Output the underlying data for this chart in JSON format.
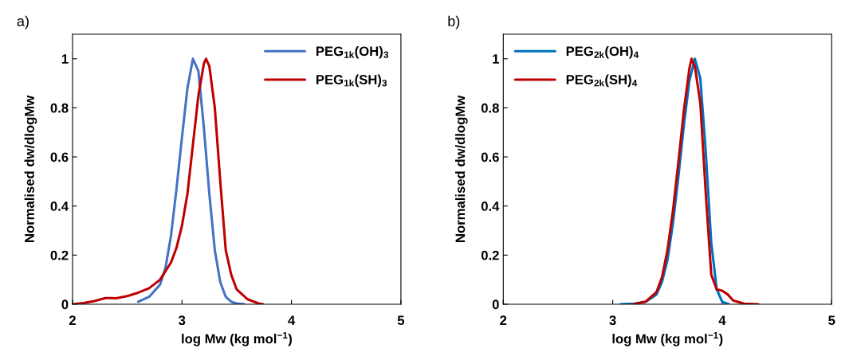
{
  "chart_data": [
    {
      "type": "line",
      "annotations": [
        "a)"
      ],
      "xlabel": "log Mw (kg mol$^{−1}$)",
      "ylabel": "Normalised dw/dlogMw",
      "xlim": [
        2,
        5
      ],
      "xticks": [
        2,
        3,
        4,
        5
      ],
      "ylim": [
        0,
        1.1
      ],
      "yticks": [
        0,
        0.2,
        0.4,
        0.6,
        0.8,
        1
      ],
      "legend": "top right",
      "grid": false,
      "series": [
        {
          "name": "PEG$_{1k}$(OH)$_{3}$",
          "color": "#4472c4",
          "x": [
            2.6,
            2.7,
            2.8,
            2.85,
            2.9,
            2.95,
            3.0,
            3.05,
            3.1,
            3.15,
            3.2,
            3.25,
            3.3,
            3.35,
            3.4,
            3.45,
            3.5,
            3.57
          ],
          "values": [
            0.01,
            0.03,
            0.08,
            0.15,
            0.28,
            0.47,
            0.68,
            0.88,
            1.0,
            0.95,
            0.72,
            0.45,
            0.22,
            0.09,
            0.03,
            0.01,
            0.003,
            0
          ]
        },
        {
          "name": "PEG$_{1k}$(SH)$_{3}$",
          "color": "#c00000",
          "x": [
            2.0,
            2.1,
            2.2,
            2.3,
            2.35,
            2.4,
            2.5,
            2.6,
            2.7,
            2.8,
            2.9,
            2.95,
            3.0,
            3.05,
            3.1,
            3.15,
            3.2,
            3.22,
            3.25,
            3.3,
            3.35,
            3.4,
            3.45,
            3.5,
            3.6,
            3.7,
            3.74
          ],
          "values": [
            0,
            0.005,
            0.013,
            0.025,
            0.025,
            0.024,
            0.033,
            0.047,
            0.065,
            0.1,
            0.17,
            0.23,
            0.32,
            0.45,
            0.65,
            0.85,
            0.98,
            1.0,
            0.97,
            0.8,
            0.5,
            0.22,
            0.12,
            0.06,
            0.02,
            0.003,
            0
          ]
        }
      ]
    },
    {
      "type": "line",
      "annotations": [
        "b)"
      ],
      "xlabel": "log Mw (kg mol$^{−1}$)",
      "ylabel": "Normalised dw/dlogMw",
      "xlim": [
        2,
        5
      ],
      "xticks": [
        2,
        3,
        4,
        5
      ],
      "ylim": [
        0,
        1.1
      ],
      "yticks": [
        0,
        0.2,
        0.4,
        0.6,
        0.8,
        1
      ],
      "legend": "top left",
      "grid": false,
      "series": [
        {
          "name": "PEG$_{2k}$(OH)$_{4}$",
          "color": "#0070c0",
          "x": [
            3.07,
            3.2,
            3.3,
            3.4,
            3.45,
            3.5,
            3.55,
            3.6,
            3.65,
            3.7,
            3.75,
            3.8,
            3.85,
            3.9,
            3.95,
            4.0,
            4.06
          ],
          "values": [
            0,
            0.002,
            0.01,
            0.04,
            0.09,
            0.18,
            0.33,
            0.52,
            0.73,
            0.91,
            1.0,
            0.92,
            0.62,
            0.25,
            0.06,
            0.01,
            0
          ]
        },
        {
          "name": "PEG$_{2k}$(SH)$_{4}$",
          "color": "#c00000",
          "x": [
            3.19,
            3.3,
            3.4,
            3.45,
            3.5,
            3.55,
            3.6,
            3.65,
            3.7,
            3.72,
            3.75,
            3.8,
            3.85,
            3.9,
            3.95,
            4.0,
            4.05,
            4.1,
            4.2,
            4.33
          ],
          "values": [
            0,
            0.01,
            0.05,
            0.11,
            0.22,
            0.38,
            0.58,
            0.79,
            0.96,
            1.0,
            0.97,
            0.82,
            0.45,
            0.12,
            0.06,
            0.055,
            0.04,
            0.015,
            0.002,
            0
          ]
        }
      ]
    }
  ]
}
